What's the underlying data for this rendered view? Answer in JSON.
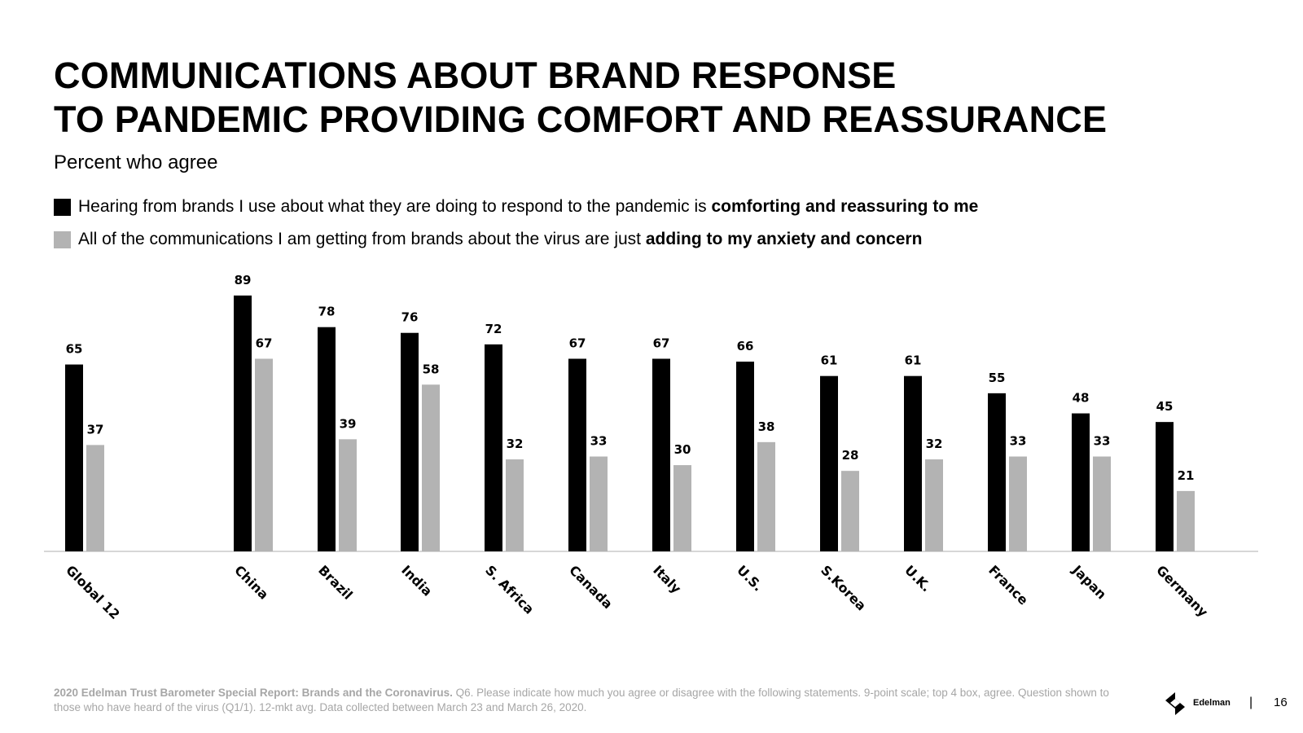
{
  "title": "COMMUNICATIONS ABOUT BRAND RESPONSE\nTO PANDEMIC PROVIDING COMFORT AND REASSURANCE",
  "subtitle": "Percent who agree",
  "legend": [
    {
      "text": "Hearing from brands I use about what they are doing to respond to the pandemic is ",
      "bold": "comforting and reassuring to me",
      "color": "#000000"
    },
    {
      "text": "All of the communications I am getting from brands about the virus are just ",
      "bold": "adding to my anxiety and concern",
      "color": "#b3b3b3"
    }
  ],
  "chart_data": {
    "type": "bar",
    "categories": [
      "Global 12",
      "China",
      "Brazil",
      "India",
      "S. Africa",
      "Canada",
      "Italy",
      "U.S.",
      "S.Korea",
      "U.K.",
      "France",
      "Japan",
      "Germany"
    ],
    "series": [
      {
        "name": "Hearing from brands I use about what they are doing to respond to the pandemic is comforting and reassuring to me",
        "color": "#000000",
        "values": [
          65,
          89,
          78,
          76,
          72,
          67,
          67,
          66,
          61,
          61,
          55,
          48,
          45
        ]
      },
      {
        "name": "All of the communications I am getting from brands about the virus are just adding to my anxiety and concern",
        "color": "#b3b3b3",
        "values": [
          37,
          67,
          39,
          58,
          32,
          33,
          30,
          38,
          28,
          32,
          33,
          33,
          21
        ]
      }
    ],
    "ylim": [
      0,
      100
    ],
    "grid": false,
    "data_labels": true
  },
  "footer": {
    "bold": "2020 Edelman Trust Barometer Special Report: Brands and the Coronavirus.",
    "text": " Q6. Please indicate how much you agree or disagree with the following statements. 9-point scale; top 4 box, agree. Question shown to those who have heard of the virus (Q1/1). 12-mkt avg. Data collected between March 23 and March 26, 2020."
  },
  "logo": {
    "text": "Edelman",
    "icon": "edelman-logo-icon"
  },
  "page_separator": "|",
  "page_number": "16"
}
